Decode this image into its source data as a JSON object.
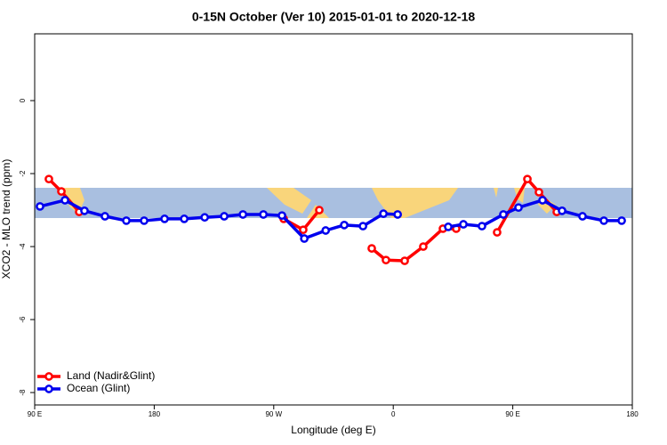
{
  "chart_data": {
    "type": "line",
    "title": "0-15N October (Ver 10)   2015-01-01 to 2020-12-18",
    "xlabel": "Longitude (deg E)",
    "ylabel": "XCO2 - MLO trend (ppm)",
    "xlim": [
      90,
      540
    ],
    "xticks": [
      {
        "value": 90,
        "label": "90 E"
      },
      {
        "value": 180,
        "label": "180"
      },
      {
        "value": 270,
        "label": "90 W"
      },
      {
        "value": 360,
        "label": "0"
      },
      {
        "value": 450,
        "label": "90 E"
      },
      {
        "value": 540,
        "label": "180"
      }
    ],
    "ylim": [
      -8.34,
      1.83
    ],
    "yticks": [
      0,
      -2,
      -4,
      -6,
      -8
    ],
    "legend": "bottom-left",
    "series": [
      {
        "name": "Land (Nadir&Glint)",
        "color": "#ff0000",
        "x": [
          100.7,
          110.1,
          123.5,
          null,
          277.5,
          292.2,
          304.3,
          null,
          343.8,
          354.5,
          368.6,
          382.6,
          397.4,
          407.4,
          null,
          438.2,
          461.0,
          469.7,
          483.1
        ],
        "values": [
          -2.15,
          -2.49,
          -3.05,
          null,
          -3.24,
          -3.54,
          -3.0,
          null,
          -4.05,
          -4.37,
          -4.39,
          -4.0,
          -3.51,
          -3.51,
          null,
          -3.61,
          -2.15,
          -2.51,
          -3.05
        ]
      },
      {
        "name": "Ocean (Glint)",
        "color": "#0000ee",
        "x": [
          94.0,
          112.8,
          127.5,
          142.9,
          159.0,
          172.4,
          187.8,
          202.6,
          218.0,
          232.7,
          246.8,
          262.2,
          276.2,
          293.0,
          309.1,
          323.1,
          337.2,
          352.6,
          363.3,
          null,
          401.4,
          412.8,
          426.8,
          442.9,
          454.3,
          472.4,
          487.1,
          502.5,
          518.6,
          532.0
        ],
        "values": [
          -2.9,
          -2.73,
          -3.02,
          -3.17,
          -3.29,
          -3.29,
          -3.24,
          -3.24,
          -3.2,
          -3.17,
          -3.12,
          -3.12,
          -3.15,
          -3.78,
          -3.56,
          -3.41,
          -3.44,
          -3.1,
          -3.12,
          null,
          -3.46,
          -3.39,
          -3.44,
          -3.12,
          -2.93,
          -2.73,
          -3.02,
          -3.17,
          -3.29,
          -3.29
        ]
      }
    ]
  }
}
